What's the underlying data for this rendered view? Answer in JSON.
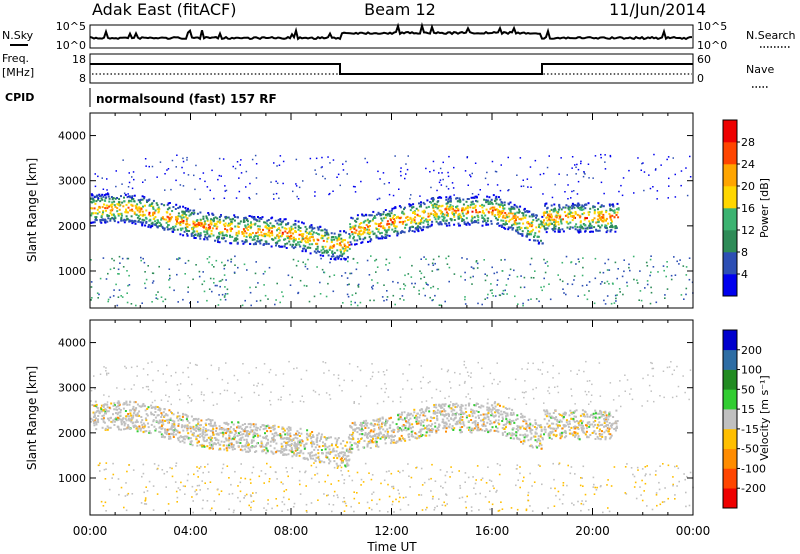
{
  "header": {
    "station": "Adak East (fitACF)",
    "beam": "Beam 12",
    "date": "11/Jun/2014"
  },
  "status_panels": {
    "nsky_label": "N.Sky",
    "nsearch_label": "N.Search",
    "noise_ticks_left": [
      "10^5",
      "10^0"
    ],
    "noise_ticks_right": [
      "10^5",
      "10^0"
    ],
    "freq_label_line1": "Freq.",
    "freq_label_line2": "[MHz]",
    "freq_ticks": [
      "18",
      "8"
    ],
    "nave_label": "Nave",
    "nave_ticks": [
      "60",
      "0"
    ],
    "cpid_label": "CPID",
    "cpid_text": "normalsound (fast) 157 RF"
  },
  "chart_data": [
    {
      "type": "heatmap",
      "title": "",
      "ylabel": "Slant Range [km]",
      "ylim": [
        180,
        4500
      ],
      "yticks": [
        "1000",
        "2000",
        "3000",
        "4000"
      ],
      "colorbar_label": "Power [dB]",
      "colorbar_ticks": [
        "4",
        "8",
        "12",
        "16",
        "20",
        "24",
        "28"
      ],
      "colors": [
        "#0000ee",
        "#2d4fb4",
        "#2e8b57",
        "#3cb371",
        "#ffd700",
        "#ffa500",
        "#ff4500",
        "#ee0000"
      ]
    },
    {
      "type": "heatmap",
      "title": "",
      "ylabel": "Slant Range [km]",
      "ylim": [
        180,
        4500
      ],
      "yticks": [
        "1000",
        "2000",
        "3000",
        "4000"
      ],
      "colorbar_label": "Velocity [m s⁻¹]",
      "colorbar_ticks": [
        "-200",
        "-100",
        "-50",
        "-15",
        "15",
        "50",
        "100",
        "200"
      ],
      "colors": [
        "#ee0000",
        "#ff4500",
        "#ff8c00",
        "#ffbf00",
        "#c0c0c0",
        "#32cd32",
        "#228b22",
        "#2e6da4",
        "#0000cd"
      ]
    }
  ],
  "x_axis": {
    "xlabel": "Time UT",
    "xticks": [
      "00:00",
      "04:00",
      "08:00",
      "12:00",
      "16:00",
      "20:00",
      "00:00"
    ]
  }
}
